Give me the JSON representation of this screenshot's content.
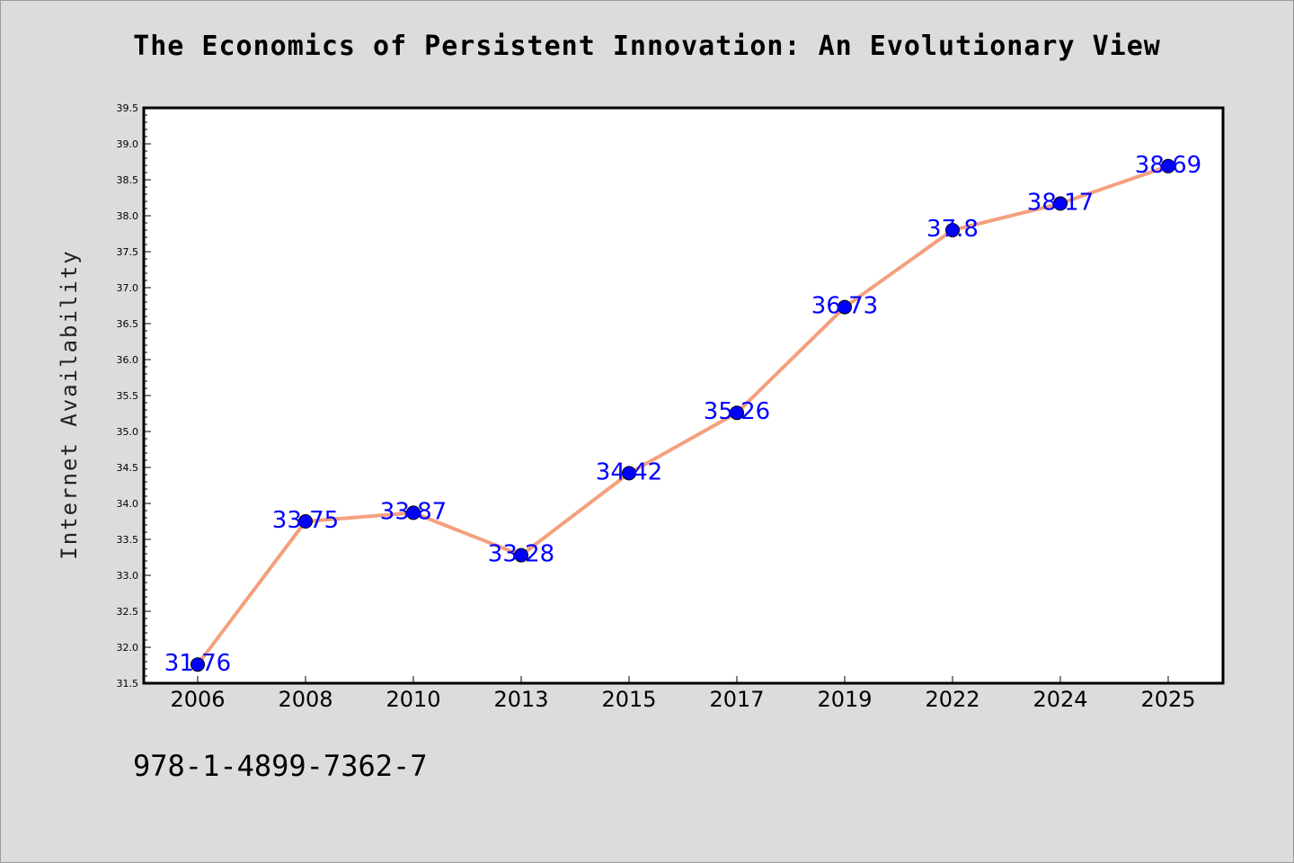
{
  "chart_data": {
    "type": "line",
    "title": "The Economics of Persistent Innovation: An Evolutionary View",
    "xlabel": "",
    "ylabel": "Internet Availability",
    "categories": [
      "2006",
      "2008",
      "2010",
      "2013",
      "2015",
      "2017",
      "2019",
      "2022",
      "2024",
      "2025"
    ],
    "series": [
      {
        "values": [
          31.76,
          33.75,
          33.87,
          33.28,
          34.42,
          35.26,
          36.73,
          37.8,
          38.17,
          38.69
        ],
        "data_labels": [
          "31.76",
          "33.75",
          "33.87",
          "33.28",
          "34.42",
          "35.26",
          "36.73",
          "37.8",
          "38.17",
          "38.69"
        ],
        "line_color": "#f4a07e",
        "marker_color": "#0000ff"
      }
    ],
    "ylim": [
      31.5,
      39.5
    ],
    "yticks": [
      "31.5",
      "32.0",
      "32.5",
      "33.0",
      "33.5",
      "34.0",
      "34.5",
      "35.0",
      "35.5",
      "36.0",
      "36.5",
      "37.0",
      "37.5",
      "38.0",
      "38.5",
      "39.0",
      "39.5"
    ],
    "grid": false,
    "legend": "none",
    "label_color": "#0000ff"
  },
  "footer": {
    "isbn": "978-1-4899-7362-7"
  }
}
